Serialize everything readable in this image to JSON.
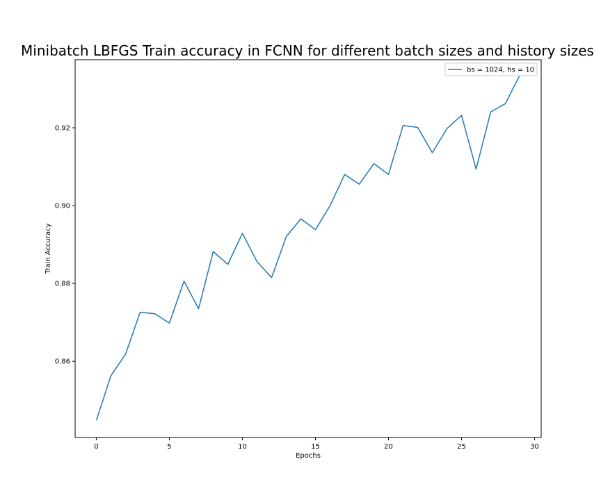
{
  "chart_data": {
    "type": "line",
    "title": "Minibatch LBFGS Train accuracy in FCNN for different batch sizes and history sizes",
    "xlabel": "Epochs",
    "ylabel": "Train Accuracy",
    "xlim": [
      -1.45,
      30.45
    ],
    "ylim": [
      0.8404,
      0.9375
    ],
    "xticks": [
      0,
      5,
      10,
      15,
      20,
      25,
      30
    ],
    "yticks": [
      0.86,
      0.88,
      0.9,
      0.92
    ],
    "xtick_labels": [
      "0",
      "5",
      "10",
      "15",
      "20",
      "25",
      "30"
    ],
    "ytick_labels": [
      "0.86",
      "0.88",
      "0.90",
      "0.92"
    ],
    "grid": false,
    "legend_position": "top-right",
    "series": [
      {
        "name": "bs = 1024, hs = 10",
        "color": "#1f77b4",
        "x": [
          0,
          1,
          2,
          3,
          4,
          5,
          6,
          7,
          8,
          9,
          10,
          11,
          12,
          13,
          14,
          15,
          16,
          17,
          18,
          19,
          20,
          21,
          22,
          23,
          24,
          25,
          26,
          27,
          28,
          29
        ],
        "y": [
          0.8448,
          0.8563,
          0.8618,
          0.8726,
          0.8722,
          0.8698,
          0.8806,
          0.8735,
          0.8882,
          0.8849,
          0.8929,
          0.8856,
          0.8815,
          0.892,
          0.8966,
          0.8938,
          0.9,
          0.908,
          0.9055,
          0.9108,
          0.908,
          0.9206,
          0.9201,
          0.9136,
          0.9198,
          0.9232,
          0.9094,
          0.9241,
          0.9262,
          0.9336
        ]
      }
    ]
  }
}
